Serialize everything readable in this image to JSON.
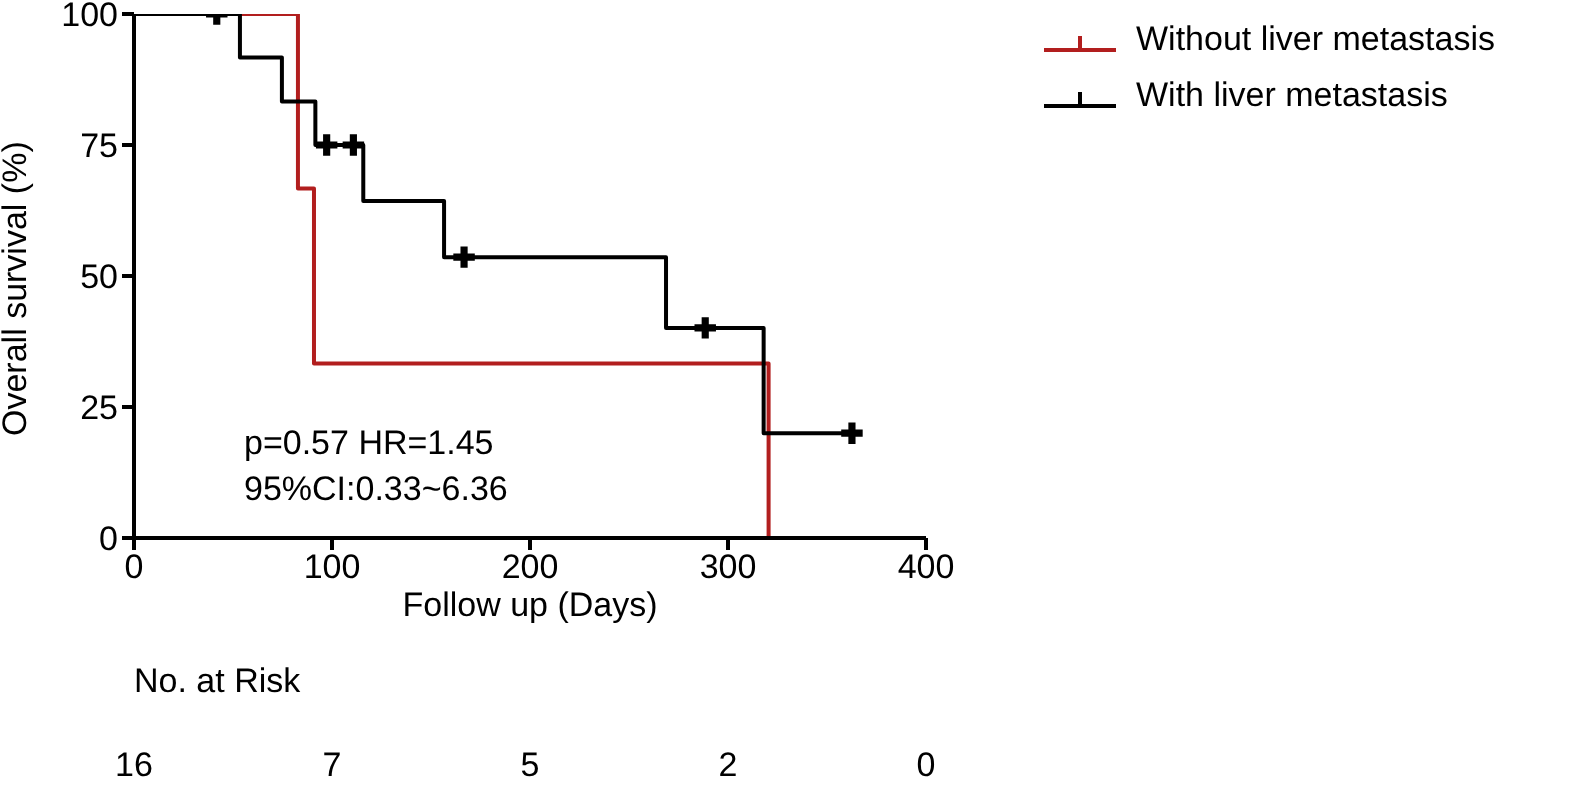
{
  "chart_data": {
    "type": "step",
    "xlabel": "Follow up (Days)",
    "ylabel": "Overall survival (%)",
    "xlim": [
      0,
      400
    ],
    "xticks": [
      0,
      100,
      200,
      300,
      400
    ],
    "ylim": [
      0,
      100
    ],
    "yticks": [
      0,
      25,
      50,
      75,
      100
    ],
    "grid": false,
    "legend": "top right",
    "marker": "none",
    "series": [
      {
        "name": "Without liver metastasis",
        "color": "#b21e1e",
        "x": [
          0,
          82.8,
          90.9,
          320.5
        ],
        "values": [
          100,
          66.7,
          33.3,
          0
        ]
      },
      {
        "name": "With liver metastasis",
        "color": "#000000",
        "x": [
          0,
          53.5,
          74.7,
          91.6,
          115.8,
          156.6,
          268.7,
          318,
          362.6
        ],
        "values": [
          100,
          91.7,
          83.3,
          75,
          64.3,
          53.6,
          40.1,
          20,
          20
        ]
      },
      {
        "type": "scatter",
        "marker": "cross",
        "color": "#000000",
        "x": [
          41.8,
          97.3,
          110.8,
          166.7,
          288.5,
          362.6
        ],
        "values": [
          100,
          75,
          75,
          53.6,
          40.1,
          20
        ]
      }
    ],
    "annotations": [
      "p=0.57 HR=1.45\n95%CI:0.33~6.36",
      "No. at Risk",
      "16",
      "7",
      "5",
      "2",
      "0"
    ]
  }
}
